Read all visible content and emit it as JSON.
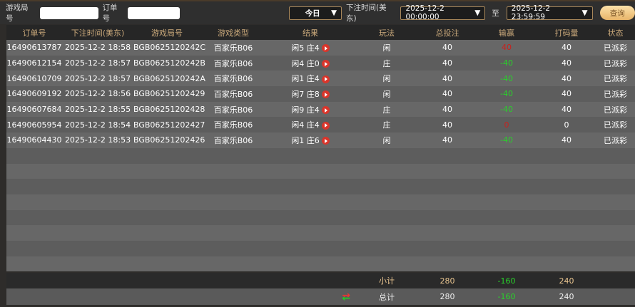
{
  "filters": {
    "game_round_label": "游戏局号",
    "game_round_value": "",
    "order_label": "订单号",
    "order_value": "",
    "period": "今日",
    "time_label": "下注时间(美东)",
    "start": "2025-12-2 00:00:00",
    "to_label": "至",
    "end": "2025-12-2 23:59:59",
    "query": "查询"
  },
  "columns": [
    "订单号",
    "下注时间(美东)",
    "游戏局号",
    "游戏类型",
    "结果",
    "玩法",
    "总投注",
    "输赢",
    "打码量",
    "状态"
  ],
  "rows": [
    {
      "order": "16490613787",
      "time": "2025-12-2 18:58",
      "round": "BGB0625120242C",
      "type": "百家乐B06",
      "result": "闲5 庄4",
      "play": "闲",
      "bet": "40",
      "win": "40",
      "win_color": "red",
      "valid": "40",
      "status": "已派彩"
    },
    {
      "order": "16490612154",
      "time": "2025-12-2 18:57",
      "round": "BGB0625120242B",
      "type": "百家乐B06",
      "result": "闲4 庄0",
      "play": "庄",
      "bet": "40",
      "win": "-40",
      "win_color": "green",
      "valid": "40",
      "status": "已派彩"
    },
    {
      "order": "16490610709",
      "time": "2025-12-2 18:57",
      "round": "BGB0625120242A",
      "type": "百家乐B06",
      "result": "闲1 庄4",
      "play": "闲",
      "bet": "40",
      "win": "-40",
      "win_color": "green",
      "valid": "40",
      "status": "已派彩"
    },
    {
      "order": "16490609192",
      "time": "2025-12-2 18:56",
      "round": "BGB06251202429",
      "type": "百家乐B06",
      "result": "闲7 庄8",
      "play": "闲",
      "bet": "40",
      "win": "-40",
      "win_color": "green",
      "valid": "40",
      "status": "已派彩"
    },
    {
      "order": "16490607684",
      "time": "2025-12-2 18:55",
      "round": "BGB06251202428",
      "type": "百家乐B06",
      "result": "闲9 庄4",
      "play": "庄",
      "bet": "40",
      "win": "-40",
      "win_color": "green",
      "valid": "40",
      "status": "已派彩"
    },
    {
      "order": "16490605954",
      "time": "2025-12-2 18:54",
      "round": "BGB06251202427",
      "type": "百家乐B06",
      "result": "闲4 庄4",
      "play": "庄",
      "bet": "40",
      "win": "0",
      "win_color": "red",
      "valid": "0",
      "status": "已派彩"
    },
    {
      "order": "16490604430",
      "time": "2025-12-2 18:53",
      "round": "BGB06251202426",
      "type": "百家乐B06",
      "result": "闲1 庄6",
      "play": "闲",
      "bet": "40",
      "win": "-40",
      "win_color": "green",
      "valid": "40",
      "status": "已派彩"
    }
  ],
  "subtotal": {
    "label": "小计",
    "bet": "280",
    "win": "-160",
    "valid": "240"
  },
  "total": {
    "label": "总计",
    "bet": "280",
    "win": "-160",
    "valid": "240"
  },
  "colors": {
    "header_text": "#c9a87a",
    "loss": "#29d12a",
    "win": "#c8221e",
    "accent": "#e8b56a"
  }
}
